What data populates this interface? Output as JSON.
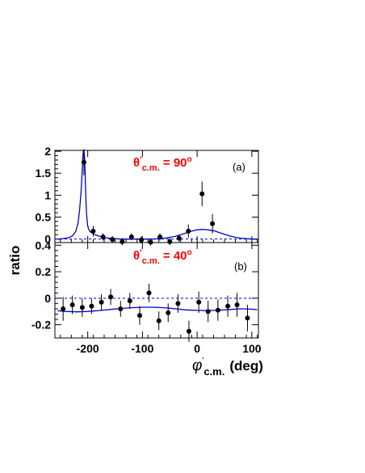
{
  "figure": {
    "ylabel": "ratio",
    "xlabel_symbol": "φ",
    "xlabel_prime": "'",
    "xlabel_sub": "c.m.",
    "xlabel_unit": "(deg)"
  },
  "chart_data": [
    {
      "panel": "a",
      "type": "scatter",
      "panel_label": "(a)",
      "annotation": {
        "symbol": "θ",
        "prime": "'",
        "sub": "c.m.",
        "value": " = 90",
        "sup": "o"
      },
      "annotation_color": "#ff0000",
      "xlim": [
        -260,
        112
      ],
      "ylim": [
        -0.08,
        2.02
      ],
      "xticks": [
        -200,
        -100,
        0,
        100
      ],
      "yticks": [
        0,
        0.5,
        1,
        1.5,
        2
      ],
      "ytick_labels": [
        "0",
        "0.5",
        "1",
        "1.5",
        "2"
      ],
      "reference_line": 0,
      "points": [
        {
          "x": -207,
          "y": 1.75,
          "err": 0.3
        },
        {
          "x": -190,
          "y": 0.18,
          "err": 0.12
        },
        {
          "x": -172,
          "y": 0.05,
          "err": 0.08
        },
        {
          "x": -155,
          "y": -0.01,
          "err": 0.08
        },
        {
          "x": -137,
          "y": -0.06,
          "err": 0.08
        },
        {
          "x": -120,
          "y": 0.05,
          "err": 0.08
        },
        {
          "x": -102,
          "y": -0.02,
          "err": 0.08
        },
        {
          "x": -85,
          "y": -0.07,
          "err": 0.08
        },
        {
          "x": -68,
          "y": 0.05,
          "err": 0.08
        },
        {
          "x": -50,
          "y": -0.06,
          "err": 0.08
        },
        {
          "x": -33,
          "y": 0.02,
          "err": 0.08
        },
        {
          "x": -16,
          "y": 0.18,
          "err": 0.15
        },
        {
          "x": 9,
          "y": 1.03,
          "err": 0.28
        },
        {
          "x": 28,
          "y": 0.35,
          "err": 0.22
        }
      ],
      "curve": {
        "color": "#0000cc",
        "x": [
          -255,
          -245,
          -235,
          -228,
          -222,
          -218,
          -215,
          -212,
          -210,
          -209,
          -208,
          -207,
          -206,
          -205,
          -204,
          -203,
          -202,
          -200,
          -198,
          -195,
          -190,
          -185,
          -180,
          -170,
          -160,
          -150,
          -140,
          -130,
          -120,
          -110,
          -100,
          -90,
          -80,
          -70,
          -60,
          -50,
          -40,
          -30,
          -20,
          -10,
          0,
          10,
          20,
          30,
          40,
          50,
          60,
          70,
          80,
          90,
          100,
          110
        ],
        "y": [
          0.0,
          0.01,
          0.03,
          0.07,
          0.17,
          0.35,
          0.65,
          1.1,
          1.6,
          1.85,
          2.0,
          2.0,
          1.9,
          1.6,
          1.2,
          0.8,
          0.55,
          0.3,
          0.22,
          0.16,
          0.12,
          0.09,
          0.07,
          0.04,
          0.02,
          0.01,
          0.0,
          0.0,
          0.0,
          0.0,
          0.0,
          0.0,
          0.0,
          0.01,
          0.02,
          0.04,
          0.06,
          0.1,
          0.14,
          0.18,
          0.21,
          0.22,
          0.21,
          0.19,
          0.15,
          0.11,
          0.07,
          0.04,
          0.02,
          0.01,
          0.0,
          0.0
        ]
      }
    },
    {
      "panel": "b",
      "type": "scatter",
      "panel_label": "(b)",
      "annotation": {
        "symbol": "θ",
        "prime": "'",
        "sub": "c.m.",
        "value": " = 40",
        "sup": "o"
      },
      "annotation_color": "#ff0000",
      "xlim": [
        -260,
        112
      ],
      "ylim": [
        -0.3,
        0.42
      ],
      "xticks": [
        -200,
        -100,
        0,
        100
      ],
      "xtick_labels": [
        "-200",
        "-100",
        "0",
        "100"
      ],
      "yticks": [
        -0.2,
        0,
        0.2,
        0.4
      ],
      "ytick_labels": [
        "-0.2",
        "0",
        "0.2",
        "0.4"
      ],
      "reference_line": 0,
      "points": [
        {
          "x": -245,
          "y": -0.08,
          "err": 0.09
        },
        {
          "x": -228,
          "y": -0.05,
          "err": 0.07
        },
        {
          "x": -210,
          "y": -0.07,
          "err": 0.07
        },
        {
          "x": -193,
          "y": -0.06,
          "err": 0.06
        },
        {
          "x": -175,
          "y": -0.03,
          "err": 0.06
        },
        {
          "x": -158,
          "y": 0.01,
          "err": 0.06
        },
        {
          "x": -140,
          "y": -0.08,
          "err": 0.06
        },
        {
          "x": -123,
          "y": -0.02,
          "err": 0.06
        },
        {
          "x": -105,
          "y": -0.13,
          "err": 0.07
        },
        {
          "x": -88,
          "y": 0.04,
          "err": 0.07
        },
        {
          "x": -70,
          "y": -0.17,
          "err": 0.07
        },
        {
          "x": -53,
          "y": -0.11,
          "err": 0.07
        },
        {
          "x": -35,
          "y": -0.04,
          "err": 0.07
        },
        {
          "x": -15,
          "y": -0.25,
          "err": 0.08
        },
        {
          "x": 3,
          "y": -0.03,
          "err": 0.08
        },
        {
          "x": 20,
          "y": -0.1,
          "err": 0.08
        },
        {
          "x": 38,
          "y": -0.09,
          "err": 0.08
        },
        {
          "x": 56,
          "y": -0.06,
          "err": 0.08
        },
        {
          "x": 73,
          "y": -0.05,
          "err": 0.09
        },
        {
          "x": 92,
          "y": -0.15,
          "err": 0.1
        }
      ],
      "curve": {
        "color": "#0000cc",
        "x": [
          -255,
          -240,
          -220,
          -200,
          -180,
          -160,
          -140,
          -120,
          -100,
          -80,
          -60,
          -40,
          -20,
          0,
          20,
          40,
          60,
          80,
          100,
          110
        ],
        "y": [
          -0.095,
          -0.1,
          -0.103,
          -0.1,
          -0.093,
          -0.085,
          -0.077,
          -0.072,
          -0.068,
          -0.068,
          -0.072,
          -0.08,
          -0.088,
          -0.092,
          -0.093,
          -0.09,
          -0.085,
          -0.08,
          -0.083,
          -0.087
        ]
      }
    }
  ]
}
